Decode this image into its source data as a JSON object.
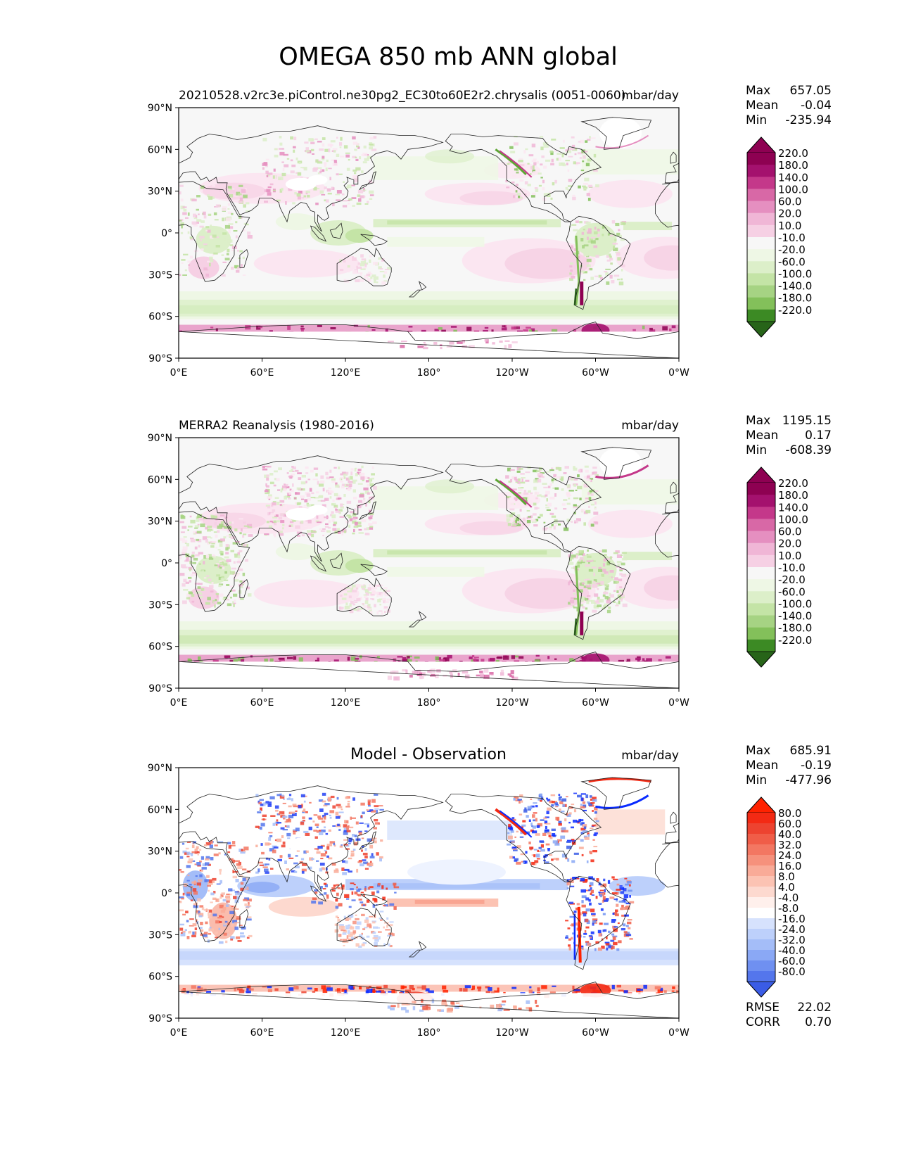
{
  "title": "OMEGA 850 mb ANN global",
  "axes": {
    "lat_ticks": [
      "90°N",
      "60°N",
      "30°N",
      "0°",
      "30°S",
      "60°S",
      "90°S"
    ],
    "lon_ticks": [
      "0°E",
      "60°E",
      "120°E",
      "180°",
      "120°W",
      "60°W",
      "0°W"
    ]
  },
  "colors": {
    "div_neg": [
      "#276419",
      "#3c8a24",
      "#5ea634",
      "#83c05a",
      "#a6d383",
      "#c4e4a6",
      "#dcefc9",
      "#eef7e5"
    ],
    "div_mid": "#f7f7f7",
    "div_pos": [
      "#fbe6f1",
      "#f6d0e4",
      "#f0b6d6",
      "#e58fc0",
      "#d868a6",
      "#c4388a",
      "#a4116e",
      "#8e0152"
    ],
    "diff_neg": [
      "#eef3ff",
      "#d6e2fd",
      "#bdd0fb",
      "#a4bdf8",
      "#8aa8f5",
      "#6f90f1",
      "#5476ec",
      "#3a5ce6",
      "#2442f4",
      "#0a2bff"
    ],
    "diff_mid": "#ffffff",
    "diff_pos": [
      "#fff0ec",
      "#fdd9cf",
      "#fcc3b3",
      "#f9ab98",
      "#f6917c",
      "#f37762",
      "#f05d48",
      "#ed4330",
      "#f32a14",
      "#ff2200"
    ]
  },
  "panels": [
    {
      "left_title": "20210528.v2rc3e.piControl.ne30pg2_EC30to60E2r2.chrysalis (0051-0060)",
      "center_title": "",
      "units": "mbar/day",
      "stats": {
        "max_label": "Max",
        "max": "657.05",
        "mean_label": "Mean",
        "mean": "-0.04",
        "min_label": "Min",
        "min": "-235.94"
      },
      "colorbar": {
        "levels": [
          "220.0",
          "180.0",
          "140.0",
          "100.0",
          "60.0",
          "20.0",
          "10.0",
          "-10.0",
          "-20.0",
          "-60.0",
          "-100.0",
          "-140.0",
          "-180.0",
          "-220.0"
        ]
      }
    },
    {
      "left_title": "MERRA2 Reanalysis (1980-2016)",
      "center_title": "",
      "units": "mbar/day",
      "stats": {
        "max_label": "Max",
        "max": "1195.15",
        "mean_label": "Mean",
        "mean": "0.17",
        "min_label": "Min",
        "min": "-608.39"
      },
      "colorbar": {
        "levels": [
          "220.0",
          "180.0",
          "140.0",
          "100.0",
          "60.0",
          "20.0",
          "10.0",
          "-10.0",
          "-20.0",
          "-60.0",
          "-100.0",
          "-140.0",
          "-180.0",
          "-220.0"
        ]
      }
    },
    {
      "left_title": "",
      "center_title": "Model - Observation",
      "units": "mbar/day",
      "stats": {
        "max_label": "Max",
        "max": "685.91",
        "mean_label": "Mean",
        "mean": "-0.19",
        "min_label": "Min",
        "min": "-477.96"
      },
      "colorbar": {
        "levels": [
          "80.0",
          "60.0",
          "40.0",
          "32.0",
          "24.0",
          "16.0",
          "8.0",
          "4.0",
          "-4.0",
          "-8.0",
          "-16.0",
          "-24.0",
          "-32.0",
          "-40.0",
          "-60.0",
          "-80.0"
        ]
      },
      "metrics": {
        "rmse_label": "RMSE",
        "rmse": "22.02",
        "corr_label": "CORR",
        "corr": "0.70"
      }
    }
  ]
}
